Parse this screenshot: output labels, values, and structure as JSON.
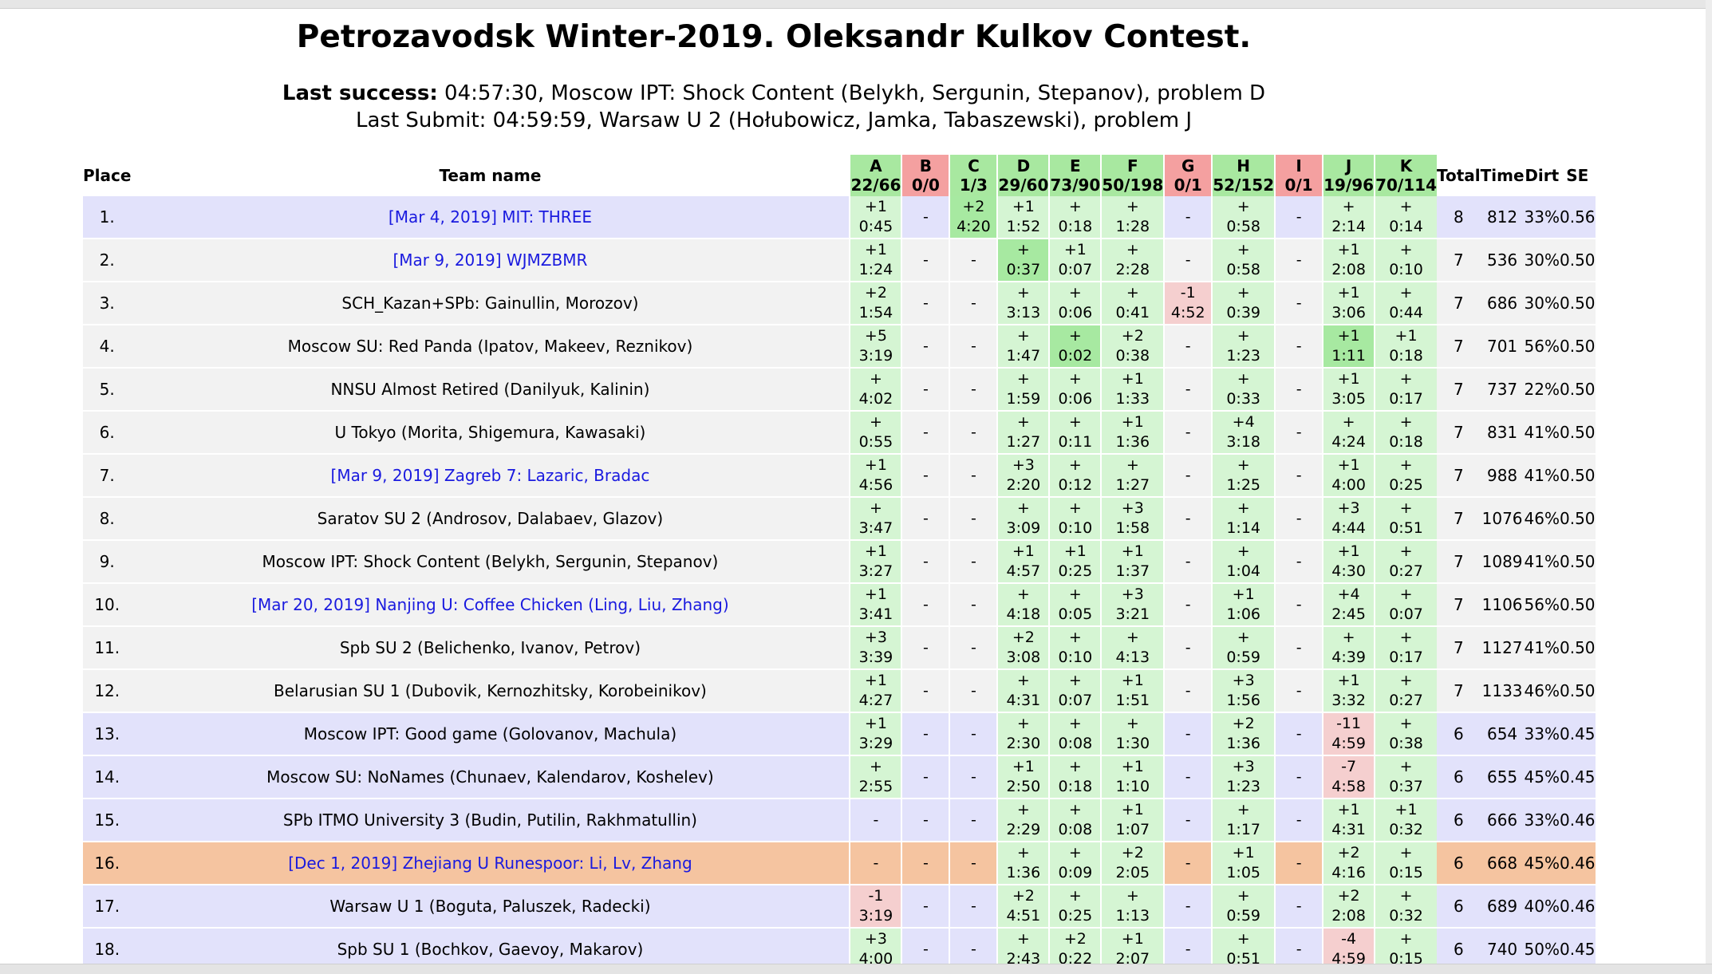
{
  "title": "Petrozavodsk Winter-2019. Oleksandr Kulkov Contest.",
  "last_success_label": "Last success:",
  "last_success_text": " 04:57:30, Moscow IPT: Shock Content (Belykh, Sergunin, Stepanov), problem D",
  "last_submit_text": "Last Submit: 04:59:59, Warsaw U 2 (Hołubowicz, Jamka, Tabaszewski), problem J",
  "headers": {
    "place": "Place",
    "team": "Team name",
    "total": "Total",
    "time": "Time",
    "dirt": "Dirt",
    "se": "SE"
  },
  "problems": [
    {
      "letter": "A",
      "stat": "22/66",
      "ok": true
    },
    {
      "letter": "B",
      "stat": "0/0",
      "ok": false
    },
    {
      "letter": "C",
      "stat": "1/3",
      "ok": true
    },
    {
      "letter": "D",
      "stat": "29/60",
      "ok": true
    },
    {
      "letter": "E",
      "stat": "73/90",
      "ok": true
    },
    {
      "letter": "F",
      "stat": "50/198",
      "ok": true
    },
    {
      "letter": "G",
      "stat": "0/1",
      "ok": false
    },
    {
      "letter": "H",
      "stat": "52/152",
      "ok": true
    },
    {
      "letter": "I",
      "stat": "0/1",
      "ok": false
    },
    {
      "letter": "J",
      "stat": "19/96",
      "ok": true
    },
    {
      "letter": "K",
      "stat": "70/114",
      "ok": true
    }
  ],
  "colors": {
    "ok_header": "#a8e8a0",
    "bad_header": "#f4a0a0",
    "ok_cell": "#d5f5d3",
    "bad_cell": "#f5cfcf",
    "first_solve": "#a7e9a1",
    "medal_row": "#e2e2fb",
    "plain_row": "#f2f2f2",
    "highlight_row": "#f5c4a0",
    "virtual_team_link": "#1a1adf"
  },
  "rows": [
    {
      "place": "1.",
      "team": "[Mar 4, 2019] MIT: THREE",
      "link": true,
      "style": "medal",
      "cells": [
        [
          "+1",
          "0:45",
          "ok"
        ],
        [
          "-",
          "",
          "none"
        ],
        [
          "+2",
          "4:20",
          "first"
        ],
        [
          "+1",
          "1:52",
          "ok"
        ],
        [
          "+",
          "0:18",
          "ok"
        ],
        [
          "+",
          "1:28",
          "ok"
        ],
        [
          "-",
          "",
          "none"
        ],
        [
          "+",
          "0:58",
          "ok"
        ],
        [
          "-",
          "",
          "none"
        ],
        [
          "+",
          "2:14",
          "ok"
        ],
        [
          "+",
          "0:14",
          "ok"
        ]
      ],
      "total": "8",
      "time": "812",
      "dirt": "33%",
      "se": "0.56"
    },
    {
      "place": "2.",
      "team": "[Mar 9, 2019] WJMZBMR",
      "link": true,
      "style": "plain",
      "cells": [
        [
          "+1",
          "1:24",
          "ok"
        ],
        [
          "-",
          "",
          "none"
        ],
        [
          "-",
          "",
          "none"
        ],
        [
          "+",
          "0:37",
          "first"
        ],
        [
          "+1",
          "0:07",
          "ok"
        ],
        [
          "+",
          "2:28",
          "ok"
        ],
        [
          "-",
          "",
          "none"
        ],
        [
          "+",
          "0:58",
          "ok"
        ],
        [
          "-",
          "",
          "none"
        ],
        [
          "+1",
          "2:08",
          "ok"
        ],
        [
          "+",
          "0:10",
          "ok"
        ]
      ],
      "total": "7",
      "time": "536",
      "dirt": "30%",
      "se": "0.50"
    },
    {
      "place": "3.",
      "team": "SCH_Kazan+SPb: Gainullin, Morozov)",
      "link": false,
      "style": "plain",
      "cells": [
        [
          "+2",
          "1:54",
          "ok"
        ],
        [
          "-",
          "",
          "none"
        ],
        [
          "-",
          "",
          "none"
        ],
        [
          "+",
          "3:13",
          "ok"
        ],
        [
          "+",
          "0:06",
          "ok"
        ],
        [
          "+",
          "0:41",
          "ok"
        ],
        [
          "-1",
          "4:52",
          "bad"
        ],
        [
          "+",
          "0:39",
          "ok"
        ],
        [
          "-",
          "",
          "none"
        ],
        [
          "+1",
          "3:06",
          "ok"
        ],
        [
          "+",
          "0:44",
          "ok"
        ]
      ],
      "total": "7",
      "time": "686",
      "dirt": "30%",
      "se": "0.50"
    },
    {
      "place": "4.",
      "team": "Moscow SU: Red Panda (Ipatov, Makeev, Reznikov)",
      "link": false,
      "style": "plain",
      "cells": [
        [
          "+5",
          "3:19",
          "ok"
        ],
        [
          "-",
          "",
          "none"
        ],
        [
          "-",
          "",
          "none"
        ],
        [
          "+",
          "1:47",
          "ok"
        ],
        [
          "+",
          "0:02",
          "first"
        ],
        [
          "+2",
          "0:38",
          "ok"
        ],
        [
          "-",
          "",
          "none"
        ],
        [
          "+",
          "1:23",
          "ok"
        ],
        [
          "-",
          "",
          "none"
        ],
        [
          "+1",
          "1:11",
          "first"
        ],
        [
          "+1",
          "0:18",
          "ok"
        ]
      ],
      "total": "7",
      "time": "701",
      "dirt": "56%",
      "se": "0.50"
    },
    {
      "place": "5.",
      "team": "NNSU Almost Retired (Danilyuk, Kalinin)",
      "link": false,
      "style": "plain",
      "cells": [
        [
          "+",
          "4:02",
          "ok"
        ],
        [
          "-",
          "",
          "none"
        ],
        [
          "-",
          "",
          "none"
        ],
        [
          "+",
          "1:59",
          "ok"
        ],
        [
          "+",
          "0:06",
          "ok"
        ],
        [
          "+1",
          "1:33",
          "ok"
        ],
        [
          "-",
          "",
          "none"
        ],
        [
          "+",
          "0:33",
          "ok"
        ],
        [
          "-",
          "",
          "none"
        ],
        [
          "+1",
          "3:05",
          "ok"
        ],
        [
          "+",
          "0:17",
          "ok"
        ]
      ],
      "total": "7",
      "time": "737",
      "dirt": "22%",
      "se": "0.50"
    },
    {
      "place": "6.",
      "team": "U Tokyo (Morita, Shigemura, Kawasaki)",
      "link": false,
      "style": "plain",
      "cells": [
        [
          "+",
          "0:55",
          "ok"
        ],
        [
          "-",
          "",
          "none"
        ],
        [
          "-",
          "",
          "none"
        ],
        [
          "+",
          "1:27",
          "ok"
        ],
        [
          "+",
          "0:11",
          "ok"
        ],
        [
          "+1",
          "1:36",
          "ok"
        ],
        [
          "-",
          "",
          "none"
        ],
        [
          "+4",
          "3:18",
          "ok"
        ],
        [
          "-",
          "",
          "none"
        ],
        [
          "+",
          "4:24",
          "ok"
        ],
        [
          "+",
          "0:18",
          "ok"
        ]
      ],
      "total": "7",
      "time": "831",
      "dirt": "41%",
      "se": "0.50"
    },
    {
      "place": "7.",
      "team": "[Mar 9, 2019] Zagreb 7: Lazaric, Bradac",
      "link": true,
      "style": "plain",
      "cells": [
        [
          "+1",
          "4:56",
          "ok"
        ],
        [
          "-",
          "",
          "none"
        ],
        [
          "-",
          "",
          "none"
        ],
        [
          "+3",
          "2:20",
          "ok"
        ],
        [
          "+",
          "0:12",
          "ok"
        ],
        [
          "+",
          "1:27",
          "ok"
        ],
        [
          "-",
          "",
          "none"
        ],
        [
          "+",
          "1:25",
          "ok"
        ],
        [
          "-",
          "",
          "none"
        ],
        [
          "+1",
          "4:00",
          "ok"
        ],
        [
          "+",
          "0:25",
          "ok"
        ]
      ],
      "total": "7",
      "time": "988",
      "dirt": "41%",
      "se": "0.50"
    },
    {
      "place": "8.",
      "team": "Saratov SU 2 (Androsov, Dalabaev, Glazov)",
      "link": false,
      "style": "plain",
      "cells": [
        [
          "+",
          "3:47",
          "ok"
        ],
        [
          "-",
          "",
          "none"
        ],
        [
          "-",
          "",
          "none"
        ],
        [
          "+",
          "3:09",
          "ok"
        ],
        [
          "+",
          "0:10",
          "ok"
        ],
        [
          "+3",
          "1:58",
          "ok"
        ],
        [
          "-",
          "",
          "none"
        ],
        [
          "+",
          "1:14",
          "ok"
        ],
        [
          "-",
          "",
          "none"
        ],
        [
          "+3",
          "4:44",
          "ok"
        ],
        [
          "+",
          "0:51",
          "ok"
        ]
      ],
      "total": "7",
      "time": "1076",
      "dirt": "46%",
      "se": "0.50"
    },
    {
      "place": "9.",
      "team": "Moscow IPT: Shock Content (Belykh, Sergunin, Stepanov)",
      "link": false,
      "style": "plain",
      "cells": [
        [
          "+1",
          "3:27",
          "ok"
        ],
        [
          "-",
          "",
          "none"
        ],
        [
          "-",
          "",
          "none"
        ],
        [
          "+1",
          "4:57",
          "ok"
        ],
        [
          "+1",
          "0:25",
          "ok"
        ],
        [
          "+1",
          "1:37",
          "ok"
        ],
        [
          "-",
          "",
          "none"
        ],
        [
          "+",
          "1:04",
          "ok"
        ],
        [
          "-",
          "",
          "none"
        ],
        [
          "+1",
          "4:30",
          "ok"
        ],
        [
          "+",
          "0:27",
          "ok"
        ]
      ],
      "total": "7",
      "time": "1089",
      "dirt": "41%",
      "se": "0.50"
    },
    {
      "place": "10.",
      "team": "[Mar 20, 2019] Nanjing U: Coffee Chicken (Ling, Liu, Zhang)",
      "link": true,
      "style": "plain",
      "cells": [
        [
          "+1",
          "3:41",
          "ok"
        ],
        [
          "-",
          "",
          "none"
        ],
        [
          "-",
          "",
          "none"
        ],
        [
          "+",
          "4:18",
          "ok"
        ],
        [
          "+",
          "0:05",
          "ok"
        ],
        [
          "+3",
          "3:21",
          "ok"
        ],
        [
          "-",
          "",
          "none"
        ],
        [
          "+1",
          "1:06",
          "ok"
        ],
        [
          "-",
          "",
          "none"
        ],
        [
          "+4",
          "2:45",
          "ok"
        ],
        [
          "+",
          "0:07",
          "ok"
        ]
      ],
      "total": "7",
      "time": "1106",
      "dirt": "56%",
      "se": "0.50"
    },
    {
      "place": "11.",
      "team": "Spb SU 2 (Belichenko, Ivanov, Petrov)",
      "link": false,
      "style": "plain",
      "cells": [
        [
          "+3",
          "3:39",
          "ok"
        ],
        [
          "-",
          "",
          "none"
        ],
        [
          "-",
          "",
          "none"
        ],
        [
          "+2",
          "3:08",
          "ok"
        ],
        [
          "+",
          "0:10",
          "ok"
        ],
        [
          "+",
          "4:13",
          "ok"
        ],
        [
          "-",
          "",
          "none"
        ],
        [
          "+",
          "0:59",
          "ok"
        ],
        [
          "-",
          "",
          "none"
        ],
        [
          "+",
          "4:39",
          "ok"
        ],
        [
          "+",
          "0:17",
          "ok"
        ]
      ],
      "total": "7",
      "time": "1127",
      "dirt": "41%",
      "se": "0.50"
    },
    {
      "place": "12.",
      "team": "Belarusian SU 1 (Dubovik, Kernozhitsky, Korobeinikov)",
      "link": false,
      "style": "plain",
      "cells": [
        [
          "+1",
          "4:27",
          "ok"
        ],
        [
          "-",
          "",
          "none"
        ],
        [
          "-",
          "",
          "none"
        ],
        [
          "+",
          "4:31",
          "ok"
        ],
        [
          "+",
          "0:07",
          "ok"
        ],
        [
          "+1",
          "1:51",
          "ok"
        ],
        [
          "-",
          "",
          "none"
        ],
        [
          "+3",
          "1:56",
          "ok"
        ],
        [
          "-",
          "",
          "none"
        ],
        [
          "+1",
          "3:32",
          "ok"
        ],
        [
          "+",
          "0:27",
          "ok"
        ]
      ],
      "total": "7",
      "time": "1133",
      "dirt": "46%",
      "se": "0.50"
    },
    {
      "place": "13.",
      "team": "Moscow IPT: Good game (Golovanov, Machula)",
      "link": false,
      "style": "medal",
      "cells": [
        [
          "+1",
          "3:29",
          "ok"
        ],
        [
          "-",
          "",
          "none"
        ],
        [
          "-",
          "",
          "none"
        ],
        [
          "+",
          "2:30",
          "ok"
        ],
        [
          "+",
          "0:08",
          "ok"
        ],
        [
          "+",
          "1:30",
          "ok"
        ],
        [
          "-",
          "",
          "none"
        ],
        [
          "+2",
          "1:36",
          "ok"
        ],
        [
          "-",
          "",
          "none"
        ],
        [
          "-11",
          "4:59",
          "bad"
        ],
        [
          "+",
          "0:38",
          "ok"
        ]
      ],
      "total": "6",
      "time": "654",
      "dirt": "33%",
      "se": "0.45"
    },
    {
      "place": "14.",
      "team": "Moscow SU: NoNames (Chunaev, Kalendarov, Koshelev)",
      "link": false,
      "style": "medal",
      "cells": [
        [
          "+",
          "2:55",
          "ok"
        ],
        [
          "-",
          "",
          "none"
        ],
        [
          "-",
          "",
          "none"
        ],
        [
          "+1",
          "2:50",
          "ok"
        ],
        [
          "+",
          "0:18",
          "ok"
        ],
        [
          "+1",
          "1:10",
          "ok"
        ],
        [
          "-",
          "",
          "none"
        ],
        [
          "+3",
          "1:23",
          "ok"
        ],
        [
          "-",
          "",
          "none"
        ],
        [
          "-7",
          "4:58",
          "bad"
        ],
        [
          "+",
          "0:37",
          "ok"
        ]
      ],
      "total": "6",
      "time": "655",
      "dirt": "45%",
      "se": "0.45"
    },
    {
      "place": "15.",
      "team": "SPb ITMO University 3 (Budin, Putilin, Rakhmatullin)",
      "link": false,
      "style": "medal",
      "cells": [
        [
          "-",
          "",
          "none"
        ],
        [
          "-",
          "",
          "none"
        ],
        [
          "-",
          "",
          "none"
        ],
        [
          "+",
          "2:29",
          "ok"
        ],
        [
          "+",
          "0:08",
          "ok"
        ],
        [
          "+1",
          "1:07",
          "ok"
        ],
        [
          "-",
          "",
          "none"
        ],
        [
          "+",
          "1:17",
          "ok"
        ],
        [
          "-",
          "",
          "none"
        ],
        [
          "+1",
          "4:31",
          "ok"
        ],
        [
          "+1",
          "0:32",
          "ok"
        ]
      ],
      "total": "6",
      "time": "666",
      "dirt": "33%",
      "se": "0.46"
    },
    {
      "place": "16.",
      "team": "[Dec 1, 2019] Zhejiang U Runespoor: Li, Lv, Zhang",
      "link": true,
      "style": "hl",
      "cells": [
        [
          "-",
          "",
          "none"
        ],
        [
          "-",
          "",
          "none"
        ],
        [
          "-",
          "",
          "none"
        ],
        [
          "+",
          "1:36",
          "ok"
        ],
        [
          "+",
          "0:09",
          "ok"
        ],
        [
          "+2",
          "2:05",
          "ok"
        ],
        [
          "-",
          "",
          "none"
        ],
        [
          "+1",
          "1:05",
          "ok"
        ],
        [
          "-",
          "",
          "none"
        ],
        [
          "+2",
          "4:16",
          "ok"
        ],
        [
          "+",
          "0:15",
          "ok"
        ]
      ],
      "total": "6",
      "time": "668",
      "dirt": "45%",
      "se": "0.46"
    },
    {
      "place": "17.",
      "team": "Warsaw U 1 (Boguta, Paluszek, Radecki)",
      "link": false,
      "style": "medal",
      "cells": [
        [
          "-1",
          "3:19",
          "bad"
        ],
        [
          "-",
          "",
          "none"
        ],
        [
          "-",
          "",
          "none"
        ],
        [
          "+2",
          "4:51",
          "ok"
        ],
        [
          "+",
          "0:25",
          "ok"
        ],
        [
          "+",
          "1:13",
          "ok"
        ],
        [
          "-",
          "",
          "none"
        ],
        [
          "+",
          "0:59",
          "ok"
        ],
        [
          "-",
          "",
          "none"
        ],
        [
          "+2",
          "2:08",
          "ok"
        ],
        [
          "+",
          "0:32",
          "ok"
        ]
      ],
      "total": "6",
      "time": "689",
      "dirt": "40%",
      "se": "0.46"
    },
    {
      "place": "18.",
      "team": "Spb SU 1 (Bochkov, Gaevoy, Makarov)",
      "link": false,
      "style": "medal",
      "cells": [
        [
          "+3",
          "4:00",
          "ok"
        ],
        [
          "-",
          "",
          "none"
        ],
        [
          "-",
          "",
          "none"
        ],
        [
          "+",
          "2:43",
          "ok"
        ],
        [
          "+2",
          "0:22",
          "ok"
        ],
        [
          "+1",
          "2:07",
          "ok"
        ],
        [
          "-",
          "",
          "none"
        ],
        [
          "+",
          "0:51",
          "ok"
        ],
        [
          "-",
          "",
          "none"
        ],
        [
          "-4",
          "4:59",
          "bad"
        ],
        [
          "+",
          "0:15",
          "ok"
        ]
      ],
      "total": "6",
      "time": "740",
      "dirt": "50%",
      "se": "0.45"
    }
  ]
}
